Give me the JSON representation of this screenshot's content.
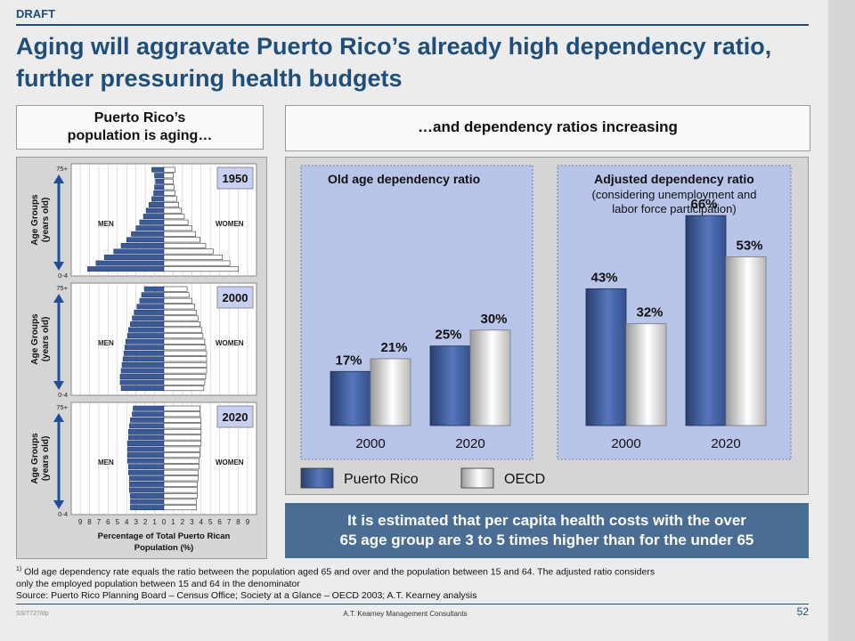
{
  "draft_label": "DRAFT",
  "title": "Aging will aggravate Puerto Rico’s already high dependency ratio, further pressuring health budgets",
  "left_header": {
    "line1": "Puerto Rico’s",
    "line2": "population is aging…"
  },
  "right_header": "…and dependency ratios increasing",
  "colors": {
    "navy": "#1f4e79",
    "panel_fill": "#b8c4e8",
    "callout": "#4a6d94",
    "pr_bar": "#3e62a6",
    "oecd_bar": "#e8e8e8"
  },
  "chart_data": [
    {
      "type": "bar",
      "subtype": "population-pyramid",
      "y_axis_label": [
        "Age Groups",
        "(years old)"
      ],
      "age_top_label": "75+",
      "age_bottom_label": "0-4",
      "left_label": "MEN",
      "right_label": "WOMEN",
      "x_ticks": [
        "9",
        "8",
        "7",
        "6",
        "5",
        "4",
        "3",
        "2",
        "1",
        "0",
        "1",
        "2",
        "3",
        "4",
        "5",
        "6",
        "7",
        "8",
        "9"
      ],
      "x_axis_label": [
        "Percentage of Total Puerto Rican",
        "Population (%)"
      ],
      "x_range": [
        -9,
        9
      ],
      "pyramids": [
        {
          "year": "1950",
          "men": [
            1.3,
            1.0,
            0.9,
            1.0,
            1.1,
            1.3,
            1.6,
            1.9,
            2.2,
            2.6,
            3.0,
            3.5,
            4.0,
            4.6,
            5.4,
            6.4,
            7.3,
            8.2
          ],
          "women": [
            1.2,
            1.0,
            1.0,
            1.1,
            1.2,
            1.4,
            1.6,
            1.9,
            2.2,
            2.6,
            3.0,
            3.4,
            3.9,
            4.5,
            5.3,
            6.3,
            7.1,
            8.0
          ]
        },
        {
          "year": "2000",
          "men": [
            2.1,
            2.4,
            2.6,
            2.9,
            3.2,
            3.4,
            3.6,
            3.8,
            3.9,
            4.1,
            4.2,
            4.3,
            4.4,
            4.5,
            4.6,
            4.7,
            4.7,
            4.6
          ],
          "women": [
            2.5,
            2.7,
            3.0,
            3.3,
            3.5,
            3.7,
            3.9,
            4.1,
            4.2,
            4.4,
            4.5,
            4.6,
            4.6,
            4.6,
            4.6,
            4.5,
            4.4,
            4.3
          ]
        },
        {
          "year": "2020",
          "men": [
            3.3,
            3.4,
            3.6,
            3.7,
            3.8,
            3.8,
            3.9,
            3.9,
            3.9,
            3.9,
            3.8,
            3.8,
            3.7,
            3.7,
            3.7,
            3.6,
            3.6,
            3.6
          ],
          "women": [
            3.9,
            3.9,
            4.0,
            4.0,
            4.0,
            4.0,
            4.0,
            3.9,
            3.9,
            3.8,
            3.8,
            3.7,
            3.7,
            3.6,
            3.6,
            3.6,
            3.5,
            3.5
          ]
        }
      ]
    },
    {
      "type": "bar",
      "title": "Old age dependency ratio",
      "categories": [
        "2000",
        "2020"
      ],
      "series": [
        {
          "name": "Puerto Rico",
          "values": [
            17,
            25
          ],
          "labels": [
            "17%",
            "25%"
          ]
        },
        {
          "name": "OECD",
          "values": [
            21,
            30
          ],
          "labels": [
            "21%",
            "30%"
          ]
        }
      ],
      "ylim": [
        0,
        75
      ]
    },
    {
      "type": "bar",
      "title": "Adjusted dependency ratio",
      "subtitle": [
        "(considering unemployment and",
        "labor force participation)"
      ],
      "categories": [
        "2000",
        "2020"
      ],
      "series": [
        {
          "name": "Puerto Rico",
          "values": [
            43,
            66
          ],
          "labels": [
            "43%",
            "66%"
          ]
        },
        {
          "name": "OECD",
          "values": [
            32,
            53
          ],
          "labels": [
            "32%",
            "53%"
          ]
        }
      ],
      "ylim": [
        0,
        75
      ]
    }
  ],
  "legend": {
    "puerto_rico": "Puerto Rico",
    "oecd": "OECD"
  },
  "callout": {
    "line1": "It is estimated that per capita health costs with the over",
    "line2": "65 age group are 3 to 5 times higher than for the under 65"
  },
  "footnote": {
    "marker": "1)",
    "line1": " Old age dependency rate equals the ratio between the population aged 65 and over and the population between 15 and 64. The adjusted ratio considers",
    "line2": "only the employed population between 15 and 64 in the denominator",
    "source": "Source: Puerto Rico Planning Board – Census Office; Society at a Glance – OECD 2003; A.T. Kearney analysis"
  },
  "doc_code": "SS/7727/dp",
  "firm": "A.T. Kearney Management Consultants",
  "page_number": "52"
}
